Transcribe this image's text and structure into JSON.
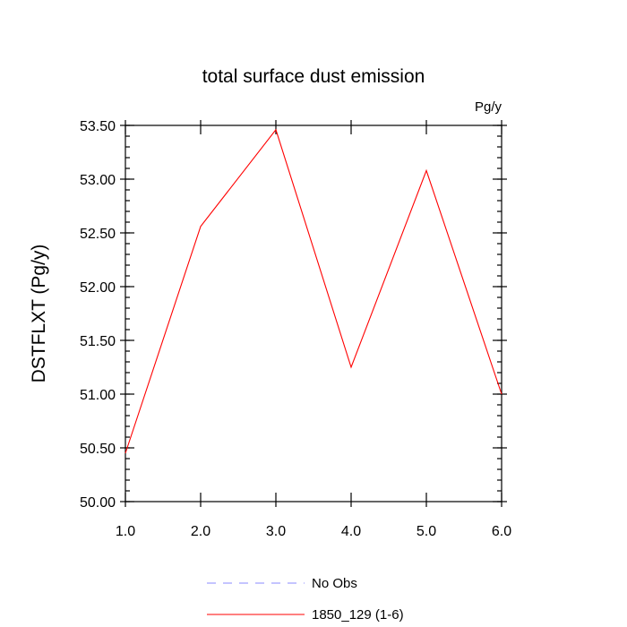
{
  "chart_data": {
    "type": "line",
    "title": "total surface dust emission",
    "units_label": "Pg/y",
    "ylabel": "DSTFLXT  (Pg/y)",
    "xlabel": "",
    "xlim": [
      1.0,
      6.0
    ],
    "ylim": [
      50.0,
      53.5
    ],
    "x_ticks": [
      1.0,
      2.0,
      3.0,
      4.0,
      5.0,
      6.0
    ],
    "x_tick_labels": [
      "1.0",
      "2.0",
      "3.0",
      "4.0",
      "5.0",
      "6.0"
    ],
    "y_ticks": [
      50.0,
      50.5,
      51.0,
      51.5,
      52.0,
      52.5,
      53.0,
      53.5
    ],
    "y_tick_labels": [
      "50.00",
      "50.50",
      "51.00",
      "51.50",
      "52.00",
      "52.50",
      "53.00",
      "53.50"
    ],
    "grid": false,
    "legend_position": "bottom",
    "series": [
      {
        "name": "1850_129 (1-6)",
        "color": "#ff0000",
        "dash": "solid",
        "x": [
          1.0,
          2.0,
          3.0,
          4.0,
          5.0,
          6.0
        ],
        "y": [
          50.45,
          52.56,
          53.46,
          51.25,
          53.08,
          51.0
        ]
      }
    ],
    "legend": [
      {
        "label": "No Obs",
        "color": "#8888ff",
        "dash": "dashed"
      },
      {
        "label": "1850_129 (1-6)",
        "color": "#ff0000",
        "dash": "solid"
      }
    ]
  }
}
